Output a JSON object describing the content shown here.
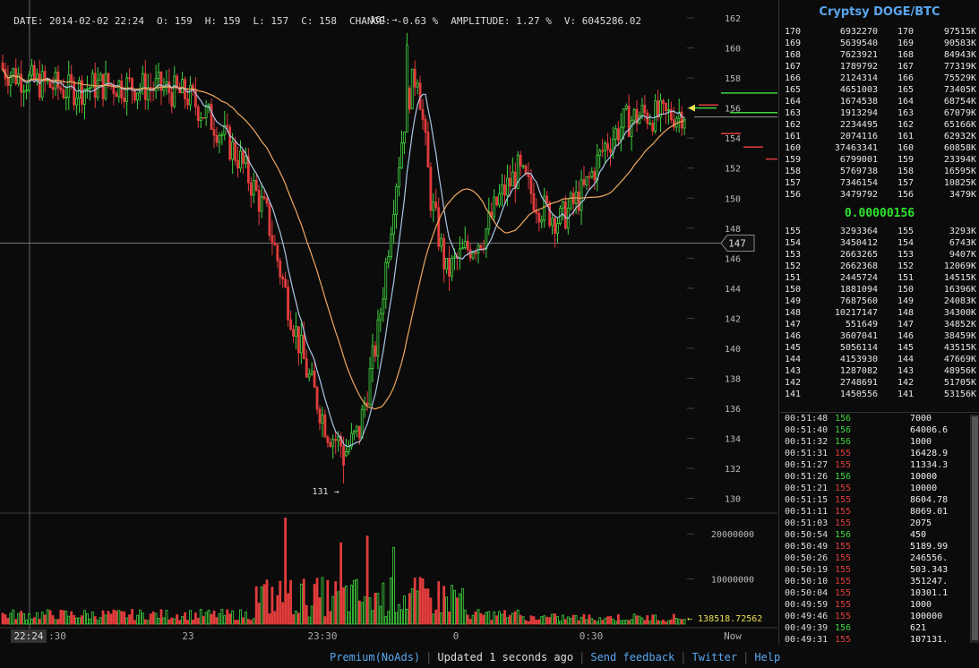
{
  "header": {
    "date": "DATE: 2014-02-02 22:24",
    "open": "O: 159",
    "high": "H: 159",
    "low": "L: 157",
    "close": "C: 158",
    "change": "CHANGE: -0.63 %",
    "amplitude": "AMPLITUDE: 1.27 %",
    "volume": "V: 6045286.02"
  },
  "market_title": "Cryptsy DOGE/BTC",
  "last_price": "0.00000156",
  "orderbook": {
    "asks": [
      [
        "170",
        "6932270",
        "170",
        "97515K"
      ],
      [
        "169",
        "5639540",
        "169",
        "90583K"
      ],
      [
        "168",
        "7623921",
        "168",
        "84943K"
      ],
      [
        "167",
        "1789792",
        "167",
        "77319K"
      ],
      [
        "166",
        "2124314",
        "166",
        "75529K"
      ],
      [
        "165",
        "4651003",
        "165",
        "73405K"
      ],
      [
        "164",
        "1674538",
        "164",
        "68754K"
      ],
      [
        "163",
        "1913294",
        "163",
        "67079K"
      ],
      [
        "162",
        "2234495",
        "162",
        "65166K"
      ],
      [
        "161",
        "2074116",
        "161",
        "62932K"
      ],
      [
        "160",
        "37463341",
        "160",
        "60858K"
      ],
      [
        "159",
        "6799001",
        "159",
        "23394K"
      ],
      [
        "158",
        "5769738",
        "158",
        "16595K"
      ],
      [
        "157",
        "7346154",
        "157",
        "10825K"
      ],
      [
        "156",
        "3479792",
        "156",
        "3479K"
      ]
    ],
    "bids": [
      [
        "155",
        "3293364",
        "155",
        "3293K"
      ],
      [
        "154",
        "3450412",
        "154",
        "6743K"
      ],
      [
        "153",
        "2663265",
        "153",
        "9407K"
      ],
      [
        "152",
        "2662368",
        "152",
        "12069K"
      ],
      [
        "151",
        "2445724",
        "151",
        "14515K"
      ],
      [
        "150",
        "1881094",
        "150",
        "16396K"
      ],
      [
        "149",
        "7687560",
        "149",
        "24083K"
      ],
      [
        "148",
        "10217147",
        "148",
        "34300K"
      ],
      [
        "147",
        "551649",
        "147",
        "34852K"
      ],
      [
        "146",
        "3607041",
        "146",
        "38459K"
      ],
      [
        "145",
        "5056114",
        "145",
        "43515K"
      ],
      [
        "144",
        "4153930",
        "144",
        "47669K"
      ],
      [
        "143",
        "1287082",
        "143",
        "48956K"
      ],
      [
        "142",
        "2748691",
        "142",
        "51705K"
      ],
      [
        "141",
        "1450556",
        "141",
        "53156K"
      ]
    ]
  },
  "trades": [
    {
      "time": "00:51:48",
      "price": "156",
      "amount": "7000",
      "dir": "up"
    },
    {
      "time": "00:51:40",
      "price": "156",
      "amount": "64006.6",
      "dir": "up"
    },
    {
      "time": "00:51:32",
      "price": "156",
      "amount": "1000",
      "dir": "up"
    },
    {
      "time": "00:51:31",
      "price": "155",
      "amount": "16428.9",
      "dir": "dn"
    },
    {
      "time": "00:51:27",
      "price": "155",
      "amount": "11334.3",
      "dir": "dn"
    },
    {
      "time": "00:51:26",
      "price": "156",
      "amount": "10000",
      "dir": "up"
    },
    {
      "time": "00:51:21",
      "price": "155",
      "amount": "10000",
      "dir": "dn"
    },
    {
      "time": "00:51:15",
      "price": "155",
      "amount": "8604.78",
      "dir": "dn"
    },
    {
      "time": "00:51:11",
      "price": "155",
      "amount": "8069.01",
      "dir": "dn"
    },
    {
      "time": "00:51:03",
      "price": "155",
      "amount": "2075",
      "dir": "dn"
    },
    {
      "time": "00:50:54",
      "price": "156",
      "amount": "450",
      "dir": "up"
    },
    {
      "time": "00:50:49",
      "price": "155",
      "amount": "5189.99",
      "dir": "dn"
    },
    {
      "time": "00:50:26",
      "price": "155",
      "amount": "246556.",
      "dir": "dn"
    },
    {
      "time": "00:50:19",
      "price": "155",
      "amount": "503.343",
      "dir": "dn"
    },
    {
      "time": "00:50:10",
      "price": "155",
      "amount": "351247.",
      "dir": "dn"
    },
    {
      "time": "00:50:04",
      "price": "155",
      "amount": "10301.1",
      "dir": "dn"
    },
    {
      "time": "00:49:59",
      "price": "155",
      "amount": "1000",
      "dir": "dn"
    },
    {
      "time": "00:49:46",
      "price": "155",
      "amount": "100000",
      "dir": "dn"
    },
    {
      "time": "00:49:39",
      "price": "156",
      "amount": "621",
      "dir": "up"
    },
    {
      "time": "00:49:31",
      "price": "155",
      "amount": "107131.",
      "dir": "dn"
    }
  ],
  "footer": {
    "premium": "Premium(NoAds)",
    "status": "Updated 1 seconds ago",
    "feedback": "Send feedback",
    "twitter": "Twitter",
    "help": "Help"
  },
  "colors": {
    "up": "#3fd43f",
    "down": "#e23c3c",
    "ma_fast": "#a9c6e8",
    "ma_slow": "#f0a860",
    "accent": "#5aa7f0"
  },
  "chart_data": {
    "type": "candlestick",
    "y_ticks": [
      130,
      132,
      134,
      136,
      138,
      140,
      142,
      144,
      146,
      148,
      150,
      152,
      154,
      156,
      158,
      160,
      162
    ],
    "ylim": [
      129.2,
      162.6
    ],
    "volume_ticks": [
      "10000000",
      "20000000"
    ],
    "volume_ylim": [
      0,
      24000000
    ],
    "x_tick_labels": [
      "22:24",
      ":30",
      "23",
      "23:30",
      "0",
      "0:30",
      "Now"
    ],
    "crosshair_price": "147",
    "last_volume_label": "138518.72562",
    "high_annotation": "161",
    "low_annotation": "131",
    "orderbook_depth_price_marks": {
      "bid": [
        156.2,
        154.3,
        153.4,
        152.6
      ],
      "ask": [
        157.0,
        155.7
      ]
    }
  }
}
